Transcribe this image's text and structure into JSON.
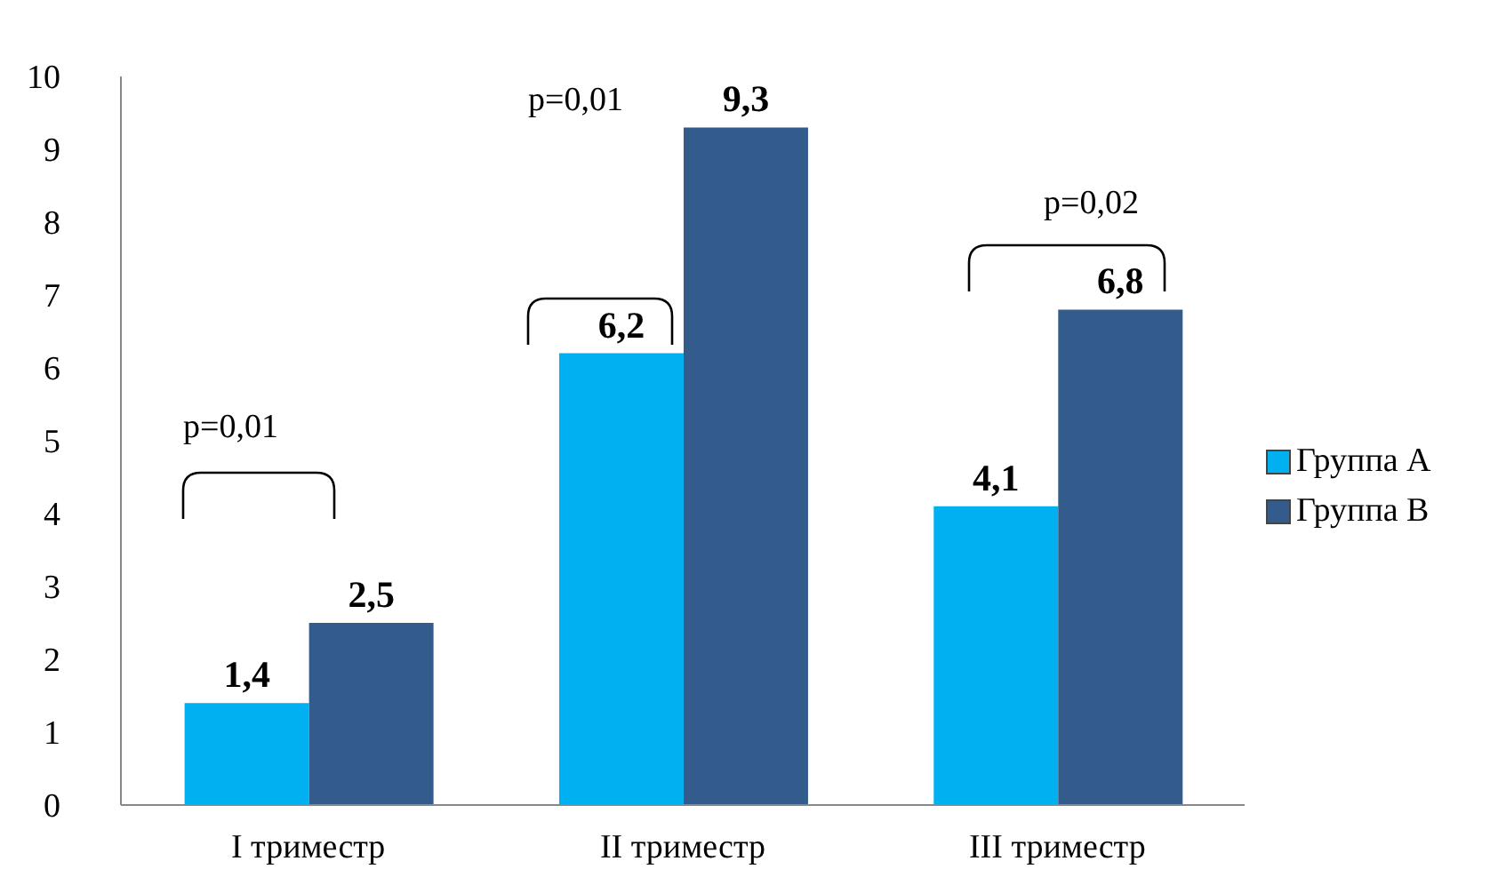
{
  "chart_data": {
    "type": "bar",
    "categories": [
      "I триместр",
      "II триместр",
      "III триместр"
    ],
    "series": [
      {
        "name": "Группа А",
        "color": "#00b0f0",
        "values": [
          1.4,
          6.2,
          4.1
        ],
        "value_labels": [
          "1,4",
          "6,2",
          "4,1"
        ]
      },
      {
        "name": "Группа В",
        "color": "#335c8d",
        "values": [
          2.5,
          9.3,
          6.8
        ],
        "value_labels": [
          "2,5",
          "9,3",
          "6,8"
        ]
      }
    ],
    "ylim": [
      0,
      10
    ],
    "yticks": [
      0,
      1,
      2,
      3,
      4,
      5,
      6,
      7,
      8,
      9,
      10
    ],
    "grid": false,
    "legend": "right",
    "annotations": [
      "p=0,01",
      "p=0,01",
      "p=0,02"
    ]
  }
}
